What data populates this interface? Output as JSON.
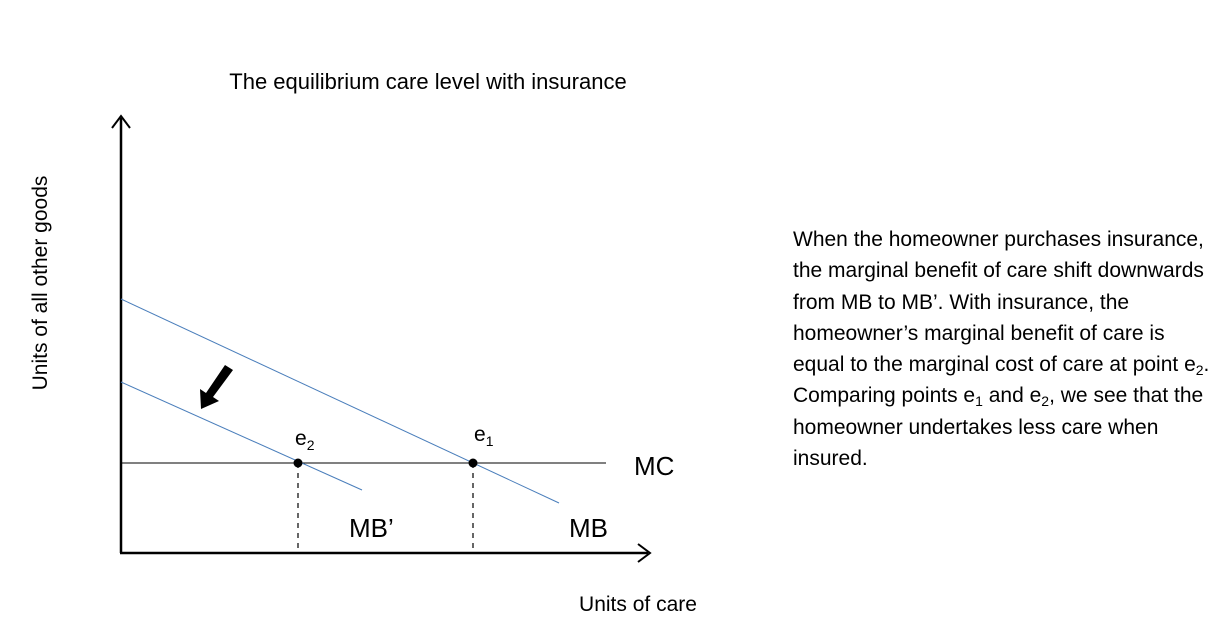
{
  "title": "The equilibrium care level with insurance",
  "axes": {
    "x_label": "Units of care",
    "y_label": "Units of all other goods"
  },
  "curves": {
    "mb_label": "MB",
    "mb_prime_label": "MB’",
    "mc_label": "MC"
  },
  "points": {
    "e1": {
      "base": "e",
      "sub": "1"
    },
    "e2": {
      "base": "e",
      "sub": "2"
    }
  },
  "shift_arrow_icon": "arrow-down-left-icon",
  "explanation": {
    "part1": "When the homeowner purchases insurance, the marginal benefit of care shift downwards from MB to MB’. With insurance, the homeowner’s marginal benefit of care is equal to the marginal cost of care at point e",
    "sub_a": "2",
    "part2": ". Comparing points e",
    "sub_b": "1",
    "part3": " and e",
    "sub_c": "2",
    "part4": ", we see that the homeowner undertakes less care when insured."
  },
  "colors": {
    "curve_blue": "#4a7ebb",
    "axis_black": "#000000"
  }
}
